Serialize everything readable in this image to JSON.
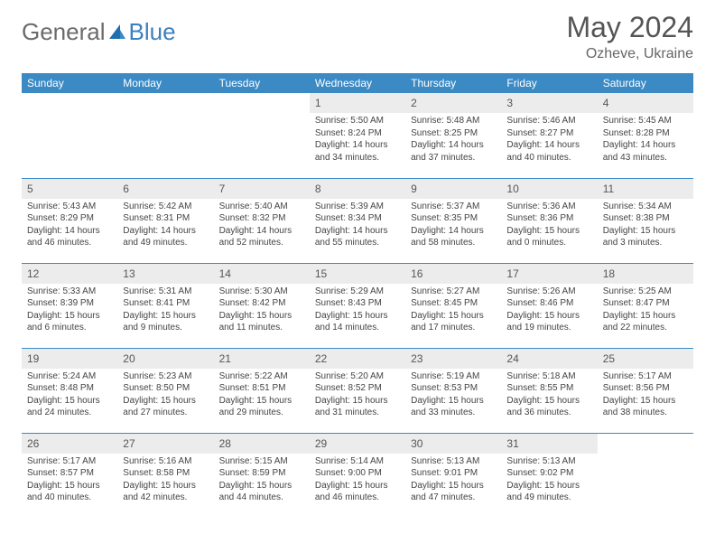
{
  "logo": {
    "text1": "General",
    "text2": "Blue"
  },
  "title": "May 2024",
  "location": "Ozheve, Ukraine",
  "weekdays": [
    "Sunday",
    "Monday",
    "Tuesday",
    "Wednesday",
    "Thursday",
    "Friday",
    "Saturday"
  ],
  "colors": {
    "header_bg": "#3b8ac4",
    "header_fg": "#ffffff",
    "daynum_bg": "#ececec",
    "text": "#444444",
    "rule": "#3b8ac4",
    "logo_gray": "#6b6b6b",
    "logo_blue": "#3b7fbf"
  },
  "weeks": [
    [
      {
        "n": "",
        "sunrise": "",
        "sunset": "",
        "daylight": ""
      },
      {
        "n": "",
        "sunrise": "",
        "sunset": "",
        "daylight": ""
      },
      {
        "n": "",
        "sunrise": "",
        "sunset": "",
        "daylight": ""
      },
      {
        "n": "1",
        "sunrise": "5:50 AM",
        "sunset": "8:24 PM",
        "daylight": "14 hours and 34 minutes."
      },
      {
        "n": "2",
        "sunrise": "5:48 AM",
        "sunset": "8:25 PM",
        "daylight": "14 hours and 37 minutes."
      },
      {
        "n": "3",
        "sunrise": "5:46 AM",
        "sunset": "8:27 PM",
        "daylight": "14 hours and 40 minutes."
      },
      {
        "n": "4",
        "sunrise": "5:45 AM",
        "sunset": "8:28 PM",
        "daylight": "14 hours and 43 minutes."
      }
    ],
    [
      {
        "n": "5",
        "sunrise": "5:43 AM",
        "sunset": "8:29 PM",
        "daylight": "14 hours and 46 minutes."
      },
      {
        "n": "6",
        "sunrise": "5:42 AM",
        "sunset": "8:31 PM",
        "daylight": "14 hours and 49 minutes."
      },
      {
        "n": "7",
        "sunrise": "5:40 AM",
        "sunset": "8:32 PM",
        "daylight": "14 hours and 52 minutes."
      },
      {
        "n": "8",
        "sunrise": "5:39 AM",
        "sunset": "8:34 PM",
        "daylight": "14 hours and 55 minutes."
      },
      {
        "n": "9",
        "sunrise": "5:37 AM",
        "sunset": "8:35 PM",
        "daylight": "14 hours and 58 minutes."
      },
      {
        "n": "10",
        "sunrise": "5:36 AM",
        "sunset": "8:36 PM",
        "daylight": "15 hours and 0 minutes."
      },
      {
        "n": "11",
        "sunrise": "5:34 AM",
        "sunset": "8:38 PM",
        "daylight": "15 hours and 3 minutes."
      }
    ],
    [
      {
        "n": "12",
        "sunrise": "5:33 AM",
        "sunset": "8:39 PM",
        "daylight": "15 hours and 6 minutes."
      },
      {
        "n": "13",
        "sunrise": "5:31 AM",
        "sunset": "8:41 PM",
        "daylight": "15 hours and 9 minutes."
      },
      {
        "n": "14",
        "sunrise": "5:30 AM",
        "sunset": "8:42 PM",
        "daylight": "15 hours and 11 minutes."
      },
      {
        "n": "15",
        "sunrise": "5:29 AM",
        "sunset": "8:43 PM",
        "daylight": "15 hours and 14 minutes."
      },
      {
        "n": "16",
        "sunrise": "5:27 AM",
        "sunset": "8:45 PM",
        "daylight": "15 hours and 17 minutes."
      },
      {
        "n": "17",
        "sunrise": "5:26 AM",
        "sunset": "8:46 PM",
        "daylight": "15 hours and 19 minutes."
      },
      {
        "n": "18",
        "sunrise": "5:25 AM",
        "sunset": "8:47 PM",
        "daylight": "15 hours and 22 minutes."
      }
    ],
    [
      {
        "n": "19",
        "sunrise": "5:24 AM",
        "sunset": "8:48 PM",
        "daylight": "15 hours and 24 minutes."
      },
      {
        "n": "20",
        "sunrise": "5:23 AM",
        "sunset": "8:50 PM",
        "daylight": "15 hours and 27 minutes."
      },
      {
        "n": "21",
        "sunrise": "5:22 AM",
        "sunset": "8:51 PM",
        "daylight": "15 hours and 29 minutes."
      },
      {
        "n": "22",
        "sunrise": "5:20 AM",
        "sunset": "8:52 PM",
        "daylight": "15 hours and 31 minutes."
      },
      {
        "n": "23",
        "sunrise": "5:19 AM",
        "sunset": "8:53 PM",
        "daylight": "15 hours and 33 minutes."
      },
      {
        "n": "24",
        "sunrise": "5:18 AM",
        "sunset": "8:55 PM",
        "daylight": "15 hours and 36 minutes."
      },
      {
        "n": "25",
        "sunrise": "5:17 AM",
        "sunset": "8:56 PM",
        "daylight": "15 hours and 38 minutes."
      }
    ],
    [
      {
        "n": "26",
        "sunrise": "5:17 AM",
        "sunset": "8:57 PM",
        "daylight": "15 hours and 40 minutes."
      },
      {
        "n": "27",
        "sunrise": "5:16 AM",
        "sunset": "8:58 PM",
        "daylight": "15 hours and 42 minutes."
      },
      {
        "n": "28",
        "sunrise": "5:15 AM",
        "sunset": "8:59 PM",
        "daylight": "15 hours and 44 minutes."
      },
      {
        "n": "29",
        "sunrise": "5:14 AM",
        "sunset": "9:00 PM",
        "daylight": "15 hours and 46 minutes."
      },
      {
        "n": "30",
        "sunrise": "5:13 AM",
        "sunset": "9:01 PM",
        "daylight": "15 hours and 47 minutes."
      },
      {
        "n": "31",
        "sunrise": "5:13 AM",
        "sunset": "9:02 PM",
        "daylight": "15 hours and 49 minutes."
      },
      {
        "n": "",
        "sunrise": "",
        "sunset": "",
        "daylight": ""
      }
    ]
  ]
}
